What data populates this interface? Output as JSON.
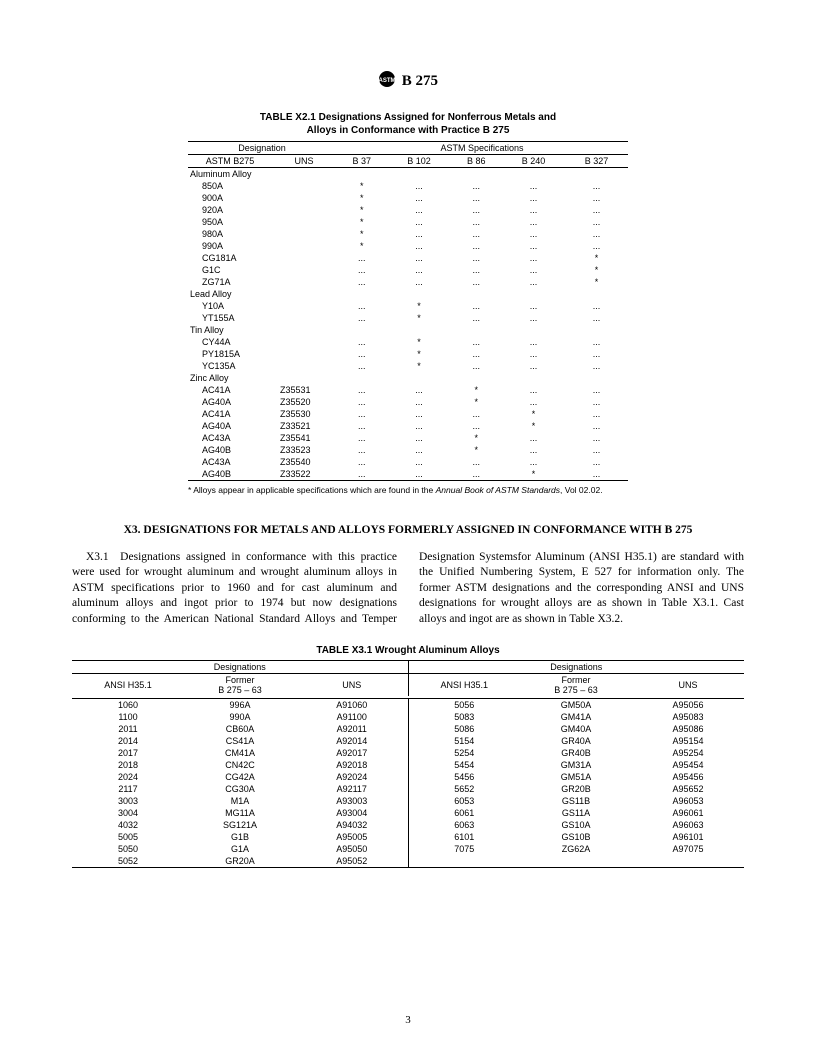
{
  "header": {
    "spec": "B 275"
  },
  "table1": {
    "title1": "TABLE X2.1  Designations Assigned for Nonferrous Metals and",
    "title2": "Alloys in Conformance with Practice B 275",
    "group_left": "Designation",
    "group_right": "ASTM Specifications",
    "col_astm": "ASTM B275",
    "col_uns": "UNS",
    "spec_cols": [
      "B 37",
      "B 102",
      "B 86",
      "B 240",
      "B 327"
    ],
    "categories": [
      {
        "label": "Aluminum Alloy",
        "rows": [
          {
            "n": "850A",
            "u": "",
            "s": [
              "*",
              "...",
              "...",
              "...",
              "..."
            ]
          },
          {
            "n": "900A",
            "u": "",
            "s": [
              "*",
              "...",
              "...",
              "...",
              "..."
            ]
          },
          {
            "n": "920A",
            "u": "",
            "s": [
              "*",
              "...",
              "...",
              "...",
              "..."
            ]
          },
          {
            "n": "950A",
            "u": "",
            "s": [
              "*",
              "...",
              "...",
              "...",
              "..."
            ]
          },
          {
            "n": "980A",
            "u": "",
            "s": [
              "*",
              "...",
              "...",
              "...",
              "..."
            ]
          },
          {
            "n": "990A",
            "u": "",
            "s": [
              "*",
              "...",
              "...",
              "...",
              "..."
            ]
          },
          {
            "n": "CG181A",
            "u": "",
            "s": [
              "...",
              "...",
              "...",
              "...",
              "*"
            ]
          },
          {
            "n": "G1C",
            "u": "",
            "s": [
              "...",
              "...",
              "...",
              "...",
              "*"
            ]
          },
          {
            "n": "ZG71A",
            "u": "",
            "s": [
              "...",
              "...",
              "...",
              "...",
              "*"
            ]
          }
        ]
      },
      {
        "label": "Lead Alloy",
        "rows": [
          {
            "n": "Y10A",
            "u": "",
            "s": [
              "...",
              "*",
              "...",
              "...",
              "..."
            ]
          },
          {
            "n": "YT155A",
            "u": "",
            "s": [
              "...",
              "*",
              "...",
              "...",
              "..."
            ]
          }
        ]
      },
      {
        "label": "Tin Alloy",
        "rows": [
          {
            "n": "CY44A",
            "u": "",
            "s": [
              "...",
              "*",
              "...",
              "...",
              "..."
            ]
          },
          {
            "n": "PY1815A",
            "u": "",
            "s": [
              "...",
              "*",
              "...",
              "...",
              "..."
            ]
          },
          {
            "n": "YC135A",
            "u": "",
            "s": [
              "...",
              "*",
              "...",
              "...",
              "..."
            ]
          }
        ]
      },
      {
        "label": "Zinc Alloy",
        "rows": [
          {
            "n": "AC41A",
            "u": "Z35531",
            "s": [
              "...",
              "...",
              "*",
              "...",
              "..."
            ]
          },
          {
            "n": "AG40A",
            "u": "Z35520",
            "s": [
              "...",
              "...",
              "*",
              "...",
              "..."
            ]
          },
          {
            "n": "AC41A",
            "u": "Z35530",
            "s": [
              "...",
              "...",
              "...",
              "*",
              "..."
            ]
          },
          {
            "n": "AG40A",
            "u": "Z33521",
            "s": [
              "...",
              "...",
              "...",
              "*",
              "..."
            ]
          },
          {
            "n": "AC43A",
            "u": "Z35541",
            "s": [
              "...",
              "...",
              "*",
              "...",
              "..."
            ]
          },
          {
            "n": "AG40B",
            "u": "Z33523",
            "s": [
              "...",
              "...",
              "*",
              "...",
              "..."
            ]
          },
          {
            "n": "AC43A",
            "u": "Z35540",
            "s": [
              "...",
              "...",
              "...",
              "...",
              "..."
            ]
          },
          {
            "n": "AG40B",
            "u": "Z33522",
            "s": [
              "...",
              "...",
              "...",
              "*",
              "..."
            ]
          }
        ]
      }
    ],
    "footnote_a": "* Alloys appear in applicable specifications which are found in the ",
    "footnote_b": "Annual Book of ASTM Standards",
    "footnote_c": ", Vol 02.02."
  },
  "section": {
    "title": "X3.  DESIGNATIONS FOR METALS AND ALLOYS FORMERLY ASSIGNED IN CONFORMANCE WITH B 275",
    "para": "X3.1 Designations assigned in conformance with this practice were used for wrought aluminum and wrought aluminum alloys in ASTM specifications prior to 1960 and for cast aluminum and aluminum alloys and ingot prior to 1974 but now designations conforming to the American National Standard Alloys and Temper Designation Systemsfor Aluminum (ANSI H35.1) are standard with the Unified Numbering System, E 527 for information only. The former ASTM designations and the corresponding ANSI and UNS designations for wrought alloys are as shown in Table X3.1. Cast alloys and ingot are as shown in Table X3.2."
  },
  "table2": {
    "title": "TABLE X3.1  Wrought Aluminum Alloys",
    "group": "Designations",
    "cols": {
      "ansi": "ANSI H35.1",
      "former1": "Former",
      "former2": "B 275 – 63",
      "uns": "UNS"
    },
    "left": [
      {
        "a": "1060",
        "f": "996A",
        "u": "A91060"
      },
      {
        "a": "1100",
        "f": "990A",
        "u": "A91100"
      },
      {
        "a": "2011",
        "f": "CB60A",
        "u": "A92011"
      },
      {
        "a": "2014",
        "f": "CS41A",
        "u": "A92014"
      },
      {
        "a": "2017",
        "f": "CM41A",
        "u": "A92017"
      },
      {
        "a": "2018",
        "f": "CN42C",
        "u": "A92018"
      },
      {
        "a": "2024",
        "f": "CG42A",
        "u": "A92024"
      },
      {
        "a": "2117",
        "f": "CG30A",
        "u": "A92117"
      },
      {
        "a": "3003",
        "f": "M1A",
        "u": "A93003"
      },
      {
        "a": "3004",
        "f": "MG11A",
        "u": "A93004"
      },
      {
        "a": "4032",
        "f": "SG121A",
        "u": "A94032"
      },
      {
        "a": "5005",
        "f": "G1B",
        "u": "A95005"
      },
      {
        "a": "5050",
        "f": "G1A",
        "u": "A95050"
      },
      {
        "a": "5052",
        "f": "GR20A",
        "u": "A95052"
      }
    ],
    "right": [
      {
        "a": "5056",
        "f": "GM50A",
        "u": "A95056"
      },
      {
        "a": "5083",
        "f": "GM41A",
        "u": "A95083"
      },
      {
        "a": "5086",
        "f": "GM40A",
        "u": "A95086"
      },
      {
        "a": "5154",
        "f": "GR40A",
        "u": "A95154"
      },
      {
        "a": "5254",
        "f": "GR40B",
        "u": "A95254"
      },
      {
        "a": "5454",
        "f": "GM31A",
        "u": "A95454"
      },
      {
        "a": "5456",
        "f": "GM51A",
        "u": "A95456"
      },
      {
        "a": "5652",
        "f": "GR20B",
        "u": "A95652"
      },
      {
        "a": "6053",
        "f": "GS11B",
        "u": "A96053"
      },
      {
        "a": "6061",
        "f": "GS11A",
        "u": "A96061"
      },
      {
        "a": "6063",
        "f": "GS10A",
        "u": "A96063"
      },
      {
        "a": "6101",
        "f": "GS10B",
        "u": "A96101"
      },
      {
        "a": "7075",
        "f": "ZG62A",
        "u": "A97075"
      }
    ]
  },
  "page_number": "3"
}
